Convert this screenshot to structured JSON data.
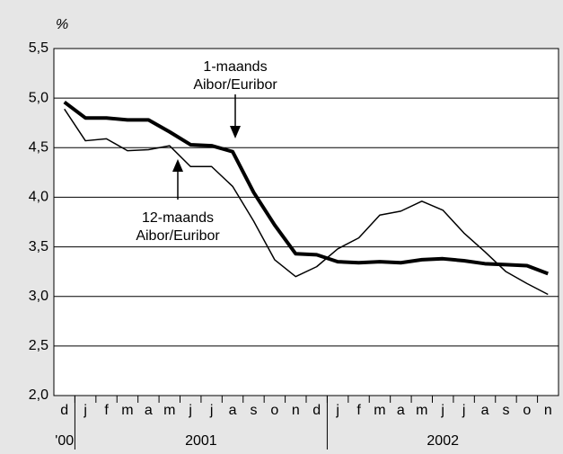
{
  "chart_data": {
    "type": "line",
    "y_label": "%",
    "categories": [
      "d",
      "j",
      "f",
      "m",
      "a",
      "m",
      "j",
      "j",
      "a",
      "s",
      "o",
      "n",
      "d",
      "j",
      "f",
      "m",
      "a",
      "m",
      "j",
      "j",
      "a",
      "s",
      "o",
      "n"
    ],
    "year_labels": [
      "'00",
      "2001",
      "2002"
    ],
    "series": [
      {
        "color": "#000000",
        "width": 4,
        "values": [
          4.96,
          4.8,
          4.8,
          4.78,
          4.78,
          4.66,
          4.53,
          4.52,
          4.46,
          4.05,
          3.72,
          3.43,
          3.42,
          3.35,
          3.34,
          3.35,
          3.34,
          3.37,
          3.38,
          3.36,
          3.33,
          3.32,
          3.31,
          3.23
        ]
      },
      {
        "color": "#000000",
        "width": 1.5,
        "values": [
          4.89,
          4.57,
          4.59,
          4.47,
          4.48,
          4.52,
          4.31,
          4.31,
          4.11,
          3.76,
          3.37,
          3.2,
          3.3,
          3.48,
          3.59,
          3.82,
          3.86,
          3.96,
          3.87,
          3.64,
          3.45,
          3.25,
          3.13,
          3.02
        ]
      }
    ],
    "annotations": [
      {
        "lines": [
          "1-maands",
          "Aibor/Euribor"
        ]
      },
      {
        "lines": [
          "12-maands",
          "Aibor/Euribor"
        ]
      }
    ],
    "ylim": [
      2.0,
      5.5
    ],
    "yticks": [
      {
        "value": 2.0,
        "label": "2,0"
      },
      {
        "value": 2.5,
        "label": "2,5"
      },
      {
        "value": 3.0,
        "label": "3,0"
      },
      {
        "value": 3.5,
        "label": "3,5"
      },
      {
        "value": 4.0,
        "label": "4,0"
      },
      {
        "value": 4.5,
        "label": "4,5"
      },
      {
        "value": 5.0,
        "label": "5,0"
      },
      {
        "value": 5.5,
        "label": "5,5"
      }
    ],
    "grid": true
  }
}
